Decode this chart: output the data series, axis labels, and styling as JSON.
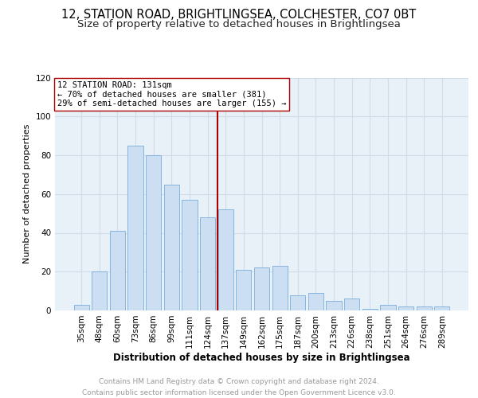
{
  "title1": "12, STATION ROAD, BRIGHTLINGSEA, COLCHESTER, CO7 0BT",
  "title2": "Size of property relative to detached houses in Brightlingsea",
  "xlabel": "Distribution of detached houses by size in Brightlingsea",
  "ylabel": "Number of detached properties",
  "categories": [
    "35sqm",
    "48sqm",
    "60sqm",
    "73sqm",
    "86sqm",
    "99sqm",
    "111sqm",
    "124sqm",
    "137sqm",
    "149sqm",
    "162sqm",
    "175sqm",
    "187sqm",
    "200sqm",
    "213sqm",
    "226sqm",
    "238sqm",
    "251sqm",
    "264sqm",
    "276sqm",
    "289sqm"
  ],
  "values": [
    3,
    20,
    41,
    85,
    80,
    65,
    57,
    48,
    52,
    21,
    22,
    23,
    8,
    9,
    5,
    6,
    1,
    3,
    2,
    2,
    2
  ],
  "bar_color": "#ccdff2",
  "bar_edge_color": "#7aadda",
  "annotation_line_color": "#aa0000",
  "annotation_box_text": "12 STATION ROAD: 131sqm\n← 70% of detached houses are smaller (381)\n29% of semi-detached houses are larger (155) →",
  "annotation_box_color": "#ffffff",
  "annotation_box_edge_color": "#aa0000",
  "grid_color": "#d0dce8",
  "background_color": "#e8f0f8",
  "footer_text": "Contains HM Land Registry data © Crown copyright and database right 2024.\nContains public sector information licensed under the Open Government Licence v3.0.",
  "ylim": [
    0,
    120
  ],
  "yticks": [
    0,
    20,
    40,
    60,
    80,
    100,
    120
  ],
  "title1_fontsize": 10.5,
  "title2_fontsize": 9.5,
  "xlabel_fontsize": 8.5,
  "ylabel_fontsize": 8,
  "tick_fontsize": 7.5,
  "footer_fontsize": 6.5,
  "ann_fontsize": 7.5
}
